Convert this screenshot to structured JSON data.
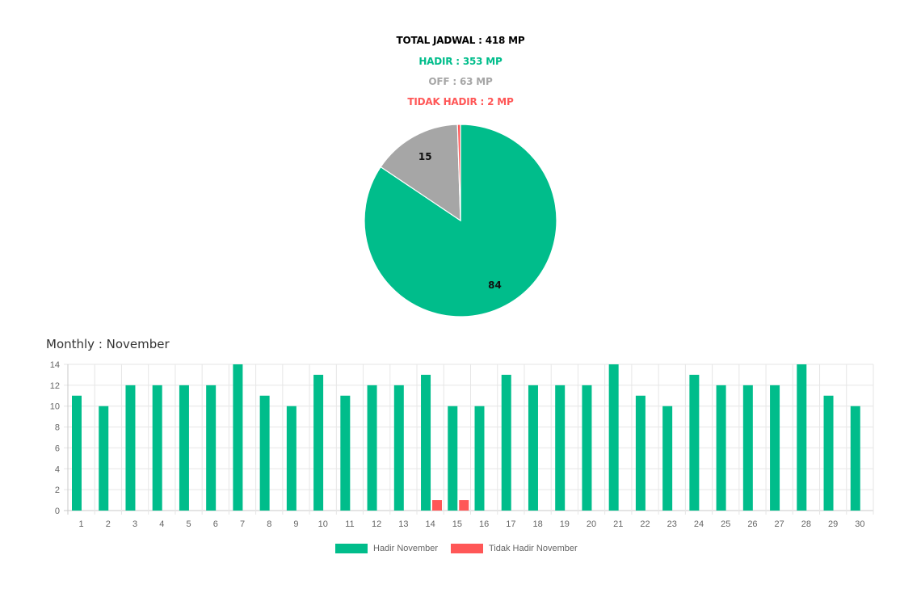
{
  "summary": {
    "total": "TOTAL JADWAL : 418 MP",
    "hadir": "HADIR : 353 MP",
    "off": "OFF : 63 MP",
    "tidak_hadir": "TIDAK HADIR : 2 MP"
  },
  "colors": {
    "hadir": "#00bd8b",
    "off": "#a6a6a6",
    "tidak_hadir": "#ff5757",
    "total": "#000000"
  },
  "monthly_title": "Monthly : November",
  "chart_data": [
    {
      "type": "pie",
      "slices": [
        {
          "label": "84",
          "value": 84,
          "color": "#00bd8b"
        },
        {
          "label": "15",
          "value": 15,
          "color": "#a6a6a6"
        },
        {
          "label": "",
          "value": 0.5,
          "color": "#ff5757"
        }
      ]
    },
    {
      "type": "bar",
      "categories": [
        "1",
        "2",
        "3",
        "4",
        "5",
        "6",
        "7",
        "8",
        "9",
        "10",
        "11",
        "12",
        "13",
        "14",
        "15",
        "16",
        "17",
        "18",
        "19",
        "20",
        "21",
        "22",
        "23",
        "24",
        "25",
        "26",
        "27",
        "28",
        "29",
        "30"
      ],
      "series": [
        {
          "name": "Hadir November",
          "color": "#00bd8b",
          "values": [
            11,
            10,
            12,
            12,
            12,
            12,
            14,
            11,
            10,
            13,
            11,
            12,
            12,
            13,
            10,
            10,
            13,
            12,
            12,
            12,
            14,
            11,
            10,
            13,
            12,
            12,
            12,
            14,
            11,
            10
          ]
        },
        {
          "name": "Tidak Hadir November",
          "color": "#ff5757",
          "values": [
            0,
            0,
            0,
            0,
            0,
            0,
            0,
            0,
            0,
            0,
            0,
            0,
            0,
            1,
            1,
            0,
            0,
            0,
            0,
            0,
            0,
            0,
            0,
            0,
            0,
            0,
            0,
            0,
            0,
            0
          ]
        }
      ],
      "yticks": [
        0,
        2,
        4,
        6,
        8,
        10,
        12,
        14
      ],
      "ylim": [
        0,
        14
      ],
      "grid": true,
      "legend": "bottom"
    }
  ]
}
